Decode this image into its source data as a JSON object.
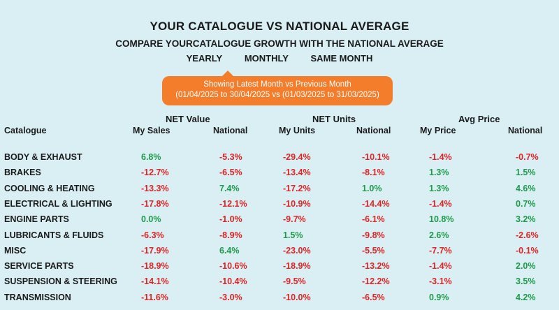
{
  "title": "YOUR CATALOGUE VS NATIONAL AVERAGE",
  "subtitle": "COMPARE YOURCATALOGUE GROWTH WITH THE NATIONAL AVERAGE",
  "period_tabs": [
    "YEARLY",
    "MONTHLY",
    "SAME MONTH"
  ],
  "info": {
    "line1": "Showing Latest Month vs Previous Month",
    "line2": "(01/04/2025 to 30/04/2025 vs (01/03/2025 to 31/03/2025)"
  },
  "groups": {
    "net_value": "NET Value",
    "net_units": "NET Units",
    "avg_price": "Avg Price"
  },
  "columns": {
    "catalogue": "Catalogue",
    "my_sales": "My Sales",
    "national_value": "National",
    "my_units": "My Units",
    "national_units": "National",
    "my_price": "My Price",
    "national_price": "National"
  },
  "colors": {
    "positive": "#1e9a4a",
    "negative": "#e02424",
    "accent": "#f47d2c",
    "background": "#d9eff3"
  },
  "rows": [
    {
      "name": "BODY & EXHAUST",
      "my_sales": "6.8%",
      "national_value": "-5.3%",
      "my_units": "-29.4%",
      "national_units": "-10.1%",
      "my_price": "-1.4%",
      "national_price": "-0.7%"
    },
    {
      "name": "BRAKES",
      "my_sales": "-12.7%",
      "national_value": "-6.5%",
      "my_units": "-13.4%",
      "national_units": "-8.1%",
      "my_price": "1.3%",
      "national_price": "1.5%"
    },
    {
      "name": "COOLING & HEATING",
      "my_sales": "-13.3%",
      "national_value": "7.4%",
      "my_units": "-17.2%",
      "national_units": "1.0%",
      "my_price": "1.3%",
      "national_price": "4.6%"
    },
    {
      "name": "ELECTRICAL & LIGHTING",
      "my_sales": "-17.8%",
      "national_value": "-12.1%",
      "my_units": "-10.9%",
      "national_units": "-14.4%",
      "my_price": "-1.4%",
      "national_price": "0.7%"
    },
    {
      "name": "ENGINE PARTS",
      "my_sales": "0.0%",
      "national_value": "-1.0%",
      "my_units": "-9.7%",
      "national_units": "-6.1%",
      "my_price": "10.8%",
      "national_price": "3.2%"
    },
    {
      "name": "LUBRICANTS & FLUIDS",
      "my_sales": "-6.3%",
      "national_value": "-8.9%",
      "my_units": "1.5%",
      "national_units": "-9.8%",
      "my_price": "2.6%",
      "national_price": "-2.6%"
    },
    {
      "name": "MISC",
      "my_sales": "-17.9%",
      "national_value": "6.4%",
      "my_units": "-23.0%",
      "national_units": "-5.5%",
      "my_price": "-7.7%",
      "national_price": "-0.1%"
    },
    {
      "name": "SERVICE PARTS",
      "my_sales": "-18.9%",
      "national_value": "-10.6%",
      "my_units": "-18.9%",
      "national_units": "-13.2%",
      "my_price": "-1.4%",
      "national_price": "2.0%"
    },
    {
      "name": "SUSPENSION & STEERING",
      "my_sales": "-14.1%",
      "national_value": "-10.4%",
      "my_units": "-9.5%",
      "national_units": "-12.2%",
      "my_price": "-3.1%",
      "national_price": "3.5%"
    },
    {
      "name": "TRANSMISSION",
      "my_sales": "-11.6%",
      "national_value": "-3.0%",
      "my_units": "-10.0%",
      "national_units": "-6.5%",
      "my_price": "0.9%",
      "national_price": "4.2%"
    }
  ]
}
